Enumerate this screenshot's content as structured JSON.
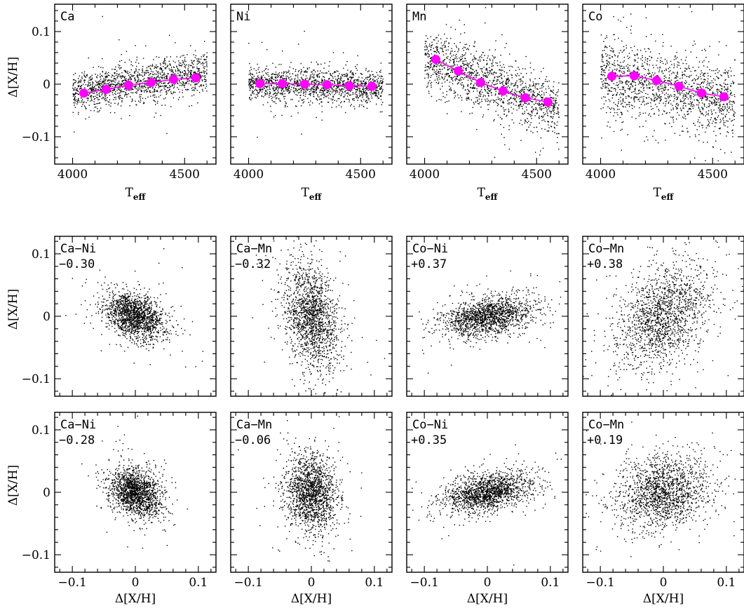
{
  "colors": {
    "points": "#000000",
    "trend": "#ff00ff"
  },
  "chart_data": [
    {
      "type": "scatter",
      "row": 0,
      "col": 0,
      "label": "Ca",
      "xlabel": "T",
      "xlabel_sub": "eff",
      "ylabel": "Δ[X/H]",
      "xlim": [
        3920,
        4640
      ],
      "ylim": [
        -0.152,
        0.152
      ],
      "xticks": [
        4000,
        4500
      ],
      "xticklabels": [
        "4000",
        "4500"
      ],
      "yticks": [
        -0.1,
        0,
        0.1
      ],
      "yticklabels": [
        "−0.1",
        "0",
        "0.1"
      ],
      "cloud": {
        "x_range": [
          4000,
          4600
        ],
        "slope": 0.066,
        "y0": -0.016,
        "sigma": 0.018,
        "n": 1400
      },
      "trend": {
        "x": [
          4050,
          4150,
          4250,
          4350,
          4450,
          4550
        ],
        "y": [
          -0.017,
          -0.01,
          -0.002,
          0.003,
          0.009,
          0.012
        ]
      }
    },
    {
      "type": "scatter",
      "row": 0,
      "col": 1,
      "label": "Ni",
      "xlabel": "T",
      "xlabel_sub": "eff",
      "ylabel": "",
      "xlim": [
        3920,
        4640
      ],
      "ylim": [
        -0.152,
        0.152
      ],
      "xticks": [
        4000,
        4500
      ],
      "xticklabels": [
        "4000",
        "4500"
      ],
      "yticks": [
        -0.1,
        0,
        0.1
      ],
      "yticklabels": [],
      "cloud": {
        "x_range": [
          4000,
          4600
        ],
        "slope": -0.012,
        "y0": 0.001,
        "sigma": 0.016,
        "n": 1400
      },
      "trend": {
        "x": [
          4050,
          4150,
          4250,
          4350,
          4450,
          4550
        ],
        "y": [
          0.001,
          0.001,
          0.0,
          -0.001,
          -0.003,
          -0.004
        ]
      }
    },
    {
      "type": "scatter",
      "row": 0,
      "col": 2,
      "label": "Mn",
      "xlabel": "T",
      "xlabel_sub": "eff",
      "ylabel": "",
      "xlim": [
        3920,
        4640
      ],
      "ylim": [
        -0.152,
        0.152
      ],
      "xticks": [
        4000,
        4500
      ],
      "xticklabels": [
        "4000",
        "4500"
      ],
      "yticks": [
        -0.1,
        0,
        0.1
      ],
      "yticklabels": [],
      "cloud": {
        "x_range": [
          4000,
          4600
        ],
        "slope": -0.17,
        "y0": 0.05,
        "sigma": 0.026,
        "n": 1400
      },
      "trend": {
        "x": [
          4050,
          4150,
          4250,
          4350,
          4450,
          4550
        ],
        "y": [
          0.047,
          0.025,
          0.003,
          -0.013,
          -0.026,
          -0.034
        ]
      }
    },
    {
      "type": "scatter",
      "row": 0,
      "col": 3,
      "label": "Co",
      "xlabel": "T",
      "xlabel_sub": "eff",
      "ylabel": "",
      "xlim": [
        3920,
        4640
      ],
      "ylim": [
        -0.152,
        0.152
      ],
      "xticks": [
        4000,
        4500
      ],
      "xticklabels": [
        "4000",
        "4500"
      ],
      "yticks": [
        -0.1,
        0,
        0.1
      ],
      "yticklabels": [],
      "cloud": {
        "x_range": [
          4000,
          4600
        ],
        "slope": -0.085,
        "y0": 0.018,
        "sigma": 0.035,
        "n": 1400
      },
      "trend": {
        "x": [
          4050,
          4150,
          4250,
          4350,
          4450,
          4550
        ],
        "y": [
          0.015,
          0.016,
          0.007,
          -0.004,
          -0.017,
          -0.024
        ]
      }
    },
    {
      "type": "scatter",
      "row": 1,
      "col": 0,
      "label": "Ca−Ni",
      "corr": "−0.30",
      "xlabel": "",
      "ylabel": "Δ[X/H]",
      "xlim": [
        -0.128,
        0.128
      ],
      "ylim": [
        -0.128,
        0.128
      ],
      "xticks": [
        -0.1,
        0,
        0.1
      ],
      "xticklabels": [],
      "yticks": [
        -0.1,
        0,
        0.1
      ],
      "yticklabels": [
        "−0.1",
        "0",
        "0.1"
      ],
      "cloud": {
        "sx": 0.023,
        "sy": 0.018,
        "rho": -0.3,
        "cx": 0.0,
        "cy": 0.0,
        "n": 1600
      }
    },
    {
      "type": "scatter",
      "row": 1,
      "col": 1,
      "label": "Ca−Mn",
      "corr": "−0.32",
      "xlabel": "",
      "ylabel": "",
      "xlim": [
        -0.128,
        0.128
      ],
      "ylim": [
        -0.128,
        0.128
      ],
      "xticks": [
        -0.1,
        0,
        0.1
      ],
      "xticklabels": [],
      "yticks": [
        -0.1,
        0,
        0.1
      ],
      "yticklabels": [],
      "cloud": {
        "sx": 0.021,
        "sy": 0.043,
        "rho": -0.32,
        "cx": 0.0,
        "cy": 0.0,
        "n": 1600
      }
    },
    {
      "type": "scatter",
      "row": 1,
      "col": 2,
      "label": "Co−Ni",
      "corr": "+0.37",
      "xlabel": "",
      "ylabel": "",
      "xlim": [
        -0.128,
        0.128
      ],
      "ylim": [
        -0.128,
        0.128
      ],
      "xticks": [
        -0.1,
        0,
        0.1
      ],
      "xticklabels": [],
      "yticks": [
        -0.1,
        0,
        0.1
      ],
      "yticklabels": [],
      "cloud": {
        "sx": 0.036,
        "sy": 0.016,
        "rho": 0.37,
        "cx": 0.0,
        "cy": 0.0,
        "n": 1600
      }
    },
    {
      "type": "scatter",
      "row": 1,
      "col": 3,
      "label": "Co−Mn",
      "corr": "+0.38",
      "xlabel": "",
      "ylabel": "",
      "xlim": [
        -0.128,
        0.128
      ],
      "ylim": [
        -0.128,
        0.128
      ],
      "xticks": [
        -0.1,
        0,
        0.1
      ],
      "xticklabels": [],
      "yticks": [
        -0.1,
        0,
        0.1
      ],
      "yticklabels": [],
      "cloud": {
        "sx": 0.038,
        "sy": 0.043,
        "rho": 0.38,
        "cx": 0.0,
        "cy": 0.0,
        "n": 1600
      }
    },
    {
      "type": "scatter",
      "row": 2,
      "col": 0,
      "label": "Ca−Ni",
      "corr": "−0.28",
      "xlabel": "Δ[X/H]",
      "ylabel": "Δ[X/H]",
      "xlim": [
        -0.128,
        0.128
      ],
      "ylim": [
        -0.128,
        0.128
      ],
      "xticks": [
        -0.1,
        0,
        0.1
      ],
      "xticklabels": [
        "−0.1",
        "0",
        "0.1"
      ],
      "yticks": [
        -0.1,
        0,
        0.1
      ],
      "yticklabels": [
        "−0.1",
        "0",
        "0.1"
      ],
      "cloud": {
        "sx": 0.021,
        "sy": 0.019,
        "rho": -0.28,
        "cx": 0.0,
        "cy": 0.0,
        "n": 1600
      }
    },
    {
      "type": "scatter",
      "row": 2,
      "col": 1,
      "label": "Ca−Mn",
      "corr": "−0.06",
      "xlabel": "Δ[X/H]",
      "ylabel": "",
      "xlim": [
        -0.128,
        0.128
      ],
      "ylim": [
        -0.128,
        0.128
      ],
      "xticks": [
        -0.1,
        0,
        0.1
      ],
      "xticklabels": [
        "−0.1",
        "0",
        "0.1"
      ],
      "yticks": [
        -0.1,
        0,
        0.1
      ],
      "yticklabels": [],
      "cloud": {
        "sx": 0.021,
        "sy": 0.03,
        "rho": -0.06,
        "cx": 0.0,
        "cy": 0.0,
        "n": 1600
      }
    },
    {
      "type": "scatter",
      "row": 2,
      "col": 2,
      "label": "Co−Ni",
      "corr": "+0.35",
      "xlabel": "Δ[X/H]",
      "ylabel": "",
      "xlim": [
        -0.128,
        0.128
      ],
      "ylim": [
        -0.128,
        0.128
      ],
      "xticks": [
        -0.1,
        0,
        0.1
      ],
      "xticklabels": [
        "−0.1",
        "0",
        "0.1"
      ],
      "yticks": [
        -0.1,
        0,
        0.1
      ],
      "yticklabels": [],
      "cloud": {
        "sx": 0.034,
        "sy": 0.016,
        "rho": 0.35,
        "cx": 0.0,
        "cy": 0.0,
        "n": 1600
      }
    },
    {
      "type": "scatter",
      "row": 2,
      "col": 3,
      "label": "Co−Mn",
      "corr": "+0.19",
      "xlabel": "Δ[X/H]",
      "ylabel": "",
      "xlim": [
        -0.128,
        0.128
      ],
      "ylim": [
        -0.128,
        0.128
      ],
      "xticks": [
        -0.1,
        0,
        0.1
      ],
      "xticklabels": [
        "−0.1",
        "0",
        "0.1"
      ],
      "yticks": [
        -0.1,
        0,
        0.1
      ],
      "yticklabels": [],
      "cloud": {
        "sx": 0.036,
        "sy": 0.028,
        "rho": 0.19,
        "cx": 0.0,
        "cy": 0.0,
        "n": 1600
      }
    }
  ]
}
